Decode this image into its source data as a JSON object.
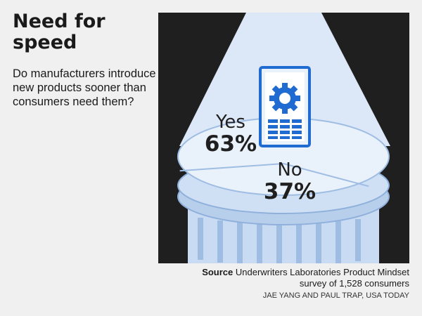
{
  "title": "Need for speed",
  "question": "Do manufacturers introduce new products sooner than consumers need them?",
  "chart_data": {
    "type": "pie",
    "title": "Need for speed",
    "categories": [
      "Yes",
      "No"
    ],
    "values": [
      63,
      37
    ],
    "value_labels": [
      "63%",
      "37%"
    ],
    "unit": "%"
  },
  "source": {
    "label": "Source",
    "text": "Underwriters Laboratories Product Mindset survey of 1,528 consumers"
  },
  "credit": "JAE YANG AND PAUL TRAP, USA TODAY",
  "colors": {
    "background": "#f0f0f0",
    "panel": "#1f1f1f",
    "pedestal": "#cfe0f5",
    "pedestal_dark": "#b6cde9",
    "icon_blue": "#1f6bd1",
    "light_beam": "#dce8f8"
  }
}
